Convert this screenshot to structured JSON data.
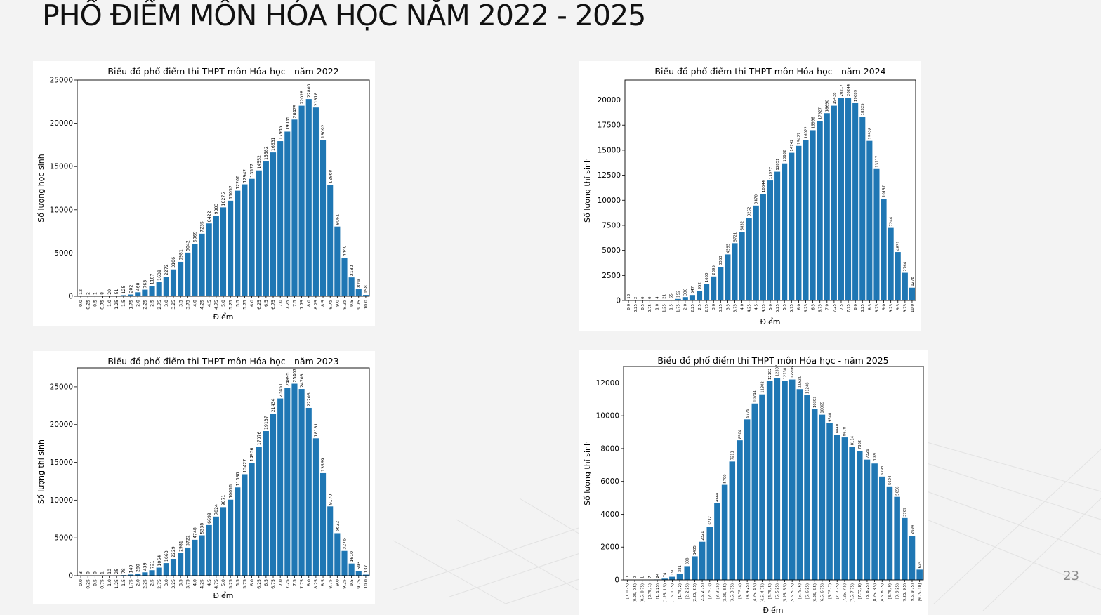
{
  "slide": {
    "title": "PHỔ ĐIỂM MÔN HÓA HỌC NĂM 2022 - 2025",
    "page_number": "23"
  },
  "colors": {
    "bar": "#1f77b4",
    "panel": "#ffffff",
    "background": "#f3f3f3"
  },
  "chart_data": [
    {
      "type": "bar",
      "title": "Biểu đồ phổ điểm thi THPT môn Hóa học - năm 2022",
      "xlabel": "Điểm",
      "ylabel": "Số lượng học sinh",
      "ylim": [
        0,
        25000
      ],
      "yticks": [
        0,
        5000,
        10000,
        15000,
        20000,
        25000
      ],
      "categories": [
        "0.0",
        "0.25",
        "0.5",
        "0.75",
        "1.0",
        "1.25",
        "1.5",
        "1.75",
        "2.0",
        "2.25",
        "2.5",
        "2.75",
        "3.0",
        "3.25",
        "3.5",
        "3.75",
        "4.0",
        "4.25",
        "4.5",
        "4.75",
        "5.0",
        "5.25",
        "5.5",
        "5.75",
        "6.0",
        "6.25",
        "6.5",
        "6.75",
        "7.0",
        "7.25",
        "7.5",
        "7.75",
        "8.0",
        "8.25",
        "8.5",
        "8.75",
        "9.0",
        "9.25",
        "9.5",
        "9.75",
        "10.0"
      ],
      "values": [
        12,
        2,
        1,
        8,
        20,
        51,
        125,
        202,
        460,
        763,
        1187,
        1639,
        2272,
        3106,
        3981,
        5042,
        6069,
        7235,
        8422,
        9303,
        10275,
        11052,
        12206,
        12942,
        13577,
        14552,
        15582,
        16631,
        17935,
        19035,
        20429,
        22028,
        22800,
        21818,
        18092,
        12868,
        8061,
        4440,
        2180,
        829,
        158
      ],
      "grid": false,
      "legend": "none"
    },
    {
      "type": "bar",
      "title": "Biểu đồ phổ điểm thi THPT môn Hóa học - năm 2024",
      "xlabel": "Điểm",
      "ylabel": "Số lượng thí sinh",
      "ylim": [
        0,
        22000
      ],
      "yticks": [
        0,
        2500,
        5000,
        7500,
        10000,
        12500,
        15000,
        17500,
        20000
      ],
      "categories": [
        "0.0",
        "0.25",
        "0.5",
        "0.75",
        "1.0",
        "1.25",
        "1.5",
        "1.75",
        "2.0",
        "2.25",
        "2.5",
        "2.75",
        "3.0",
        "3.25",
        "3.5",
        "3.75",
        "4.0",
        "4.25",
        "4.5",
        "4.75",
        "5.0",
        "5.25",
        "5.5",
        "5.75",
        "6.0",
        "6.25",
        "6.5",
        "6.75",
        "7.0",
        "7.25",
        "7.5",
        "7.75",
        "8.0",
        "8.25",
        "8.5",
        "8.75",
        "9.0",
        "9.25",
        "9.5",
        "9.75",
        "10.0"
      ],
      "values": [
        18,
        2,
        0,
        0,
        4,
        21,
        65,
        152,
        336,
        547,
        952,
        1660,
        2395,
        3363,
        4595,
        5721,
        6832,
        8252,
        9470,
        10644,
        11977,
        12851,
        13682,
        14742,
        15427,
        16022,
        16996,
        17927,
        18690,
        19438,
        20217,
        20244,
        19689,
        18325,
        15928,
        13117,
        10157,
        7244,
        4831,
        2764,
        1278
      ],
      "grid": false,
      "legend": "none"
    },
    {
      "type": "bar",
      "title": "Biểu đồ phổ điểm thi THPT môn Hóa học - năm 2023",
      "xlabel": "Điểm",
      "ylabel": "Số lượng thí sinh",
      "ylim": [
        0,
        27500
      ],
      "yticks": [
        0,
        5000,
        10000,
        15000,
        20000,
        25000
      ],
      "categories": [
        "0.0",
        "0.25",
        "0.5",
        "0.75",
        "1.0",
        "1.25",
        "1.5",
        "1.75",
        "2.0",
        "2.25",
        "2.5",
        "2.75",
        "3.0",
        "3.25",
        "3.5",
        "3.75",
        "4.0",
        "4.25",
        "4.5",
        "4.75",
        "5.0",
        "5.25",
        "5.5",
        "5.75",
        "6.0",
        "6.25",
        "6.5",
        "6.75",
        "7.0",
        "7.25",
        "7.5",
        "7.75",
        "8.0",
        "8.25",
        "8.5",
        "8.75",
        "9.0",
        "9.25",
        "9.5",
        "9.75",
        "10.0"
      ],
      "values": [
        3,
        0,
        0,
        1,
        10,
        25,
        78,
        149,
        280,
        439,
        721,
        1064,
        1663,
        2229,
        2981,
        3722,
        4748,
        5338,
        6699,
        7824,
        9071,
        10056,
        11680,
        13427,
        14936,
        17076,
        19137,
        21434,
        23451,
        24895,
        25407,
        24708,
        22206,
        18181,
        13569,
        9170,
        5622,
        3276,
        1610,
        593,
        137
      ],
      "grid": false,
      "legend": "none"
    },
    {
      "type": "bar",
      "title": "Biểu đồ phổ điểm thi THPT môn Hóa học - năm 2025",
      "xlabel": "Điểm",
      "ylabel": "Số lượng thí sinh",
      "ylim": [
        0,
        13000
      ],
      "yticks": [
        0,
        2000,
        4000,
        6000,
        8000,
        10000,
        12000
      ],
      "categories": [
        "[0, 0.25)",
        "[0.25, 0.5)",
        "[0.5, 0.75)",
        "[0.75, 1)",
        "[1, 1.25)",
        "[1.25, 1.5)",
        "[1.5, 1.75)",
        "[1.75, 2)",
        "[2, 2.25)",
        "[2.25, 2.5)",
        "[2.5, 2.75)",
        "[2.75, 3)",
        "[3, 3.25)",
        "[3.25, 3.5)",
        "[3.5, 3.75)",
        "[3.75, 4)",
        "[4, 4.25)",
        "[4.25, 4.5)",
        "[4.5, 4.75)",
        "[4.75, 5)",
        "[5, 5.25)",
        "[5.25, 5.5)",
        "[5.5, 5.75)",
        "[5.75, 6)",
        "[6, 6.25)",
        "[6.25, 6.5)",
        "[6.5, 6.75)",
        "[6.75, 7)",
        "[7, 7.25)",
        "[7.25, 7.5)",
        "[7.5, 7.75)",
        "[7.75, 8)",
        "[8, 8.25)",
        "[8.25, 8.5)",
        "[8.5, 8.75)",
        "[8.75, 9)",
        "[9, 9.25)",
        "[9.25, 9.5)",
        "[9.5, 9.75)",
        "[9.75, 10]"
      ],
      "values": [
        0,
        0,
        1,
        7,
        24,
        74,
        190,
        381,
        838,
        1435,
        2321,
        3232,
        4668,
        5790,
        7211,
        8504,
        9779,
        10744,
        11302,
        12102,
        12307,
        12130,
        12206,
        11621,
        11248,
        10393,
        10065,
        9540,
        8840,
        8678,
        8114,
        7862,
        7326,
        7089,
        6293,
        5694,
        5058,
        3769,
        2694,
        625
      ],
      "grid": false,
      "legend": "none"
    }
  ]
}
